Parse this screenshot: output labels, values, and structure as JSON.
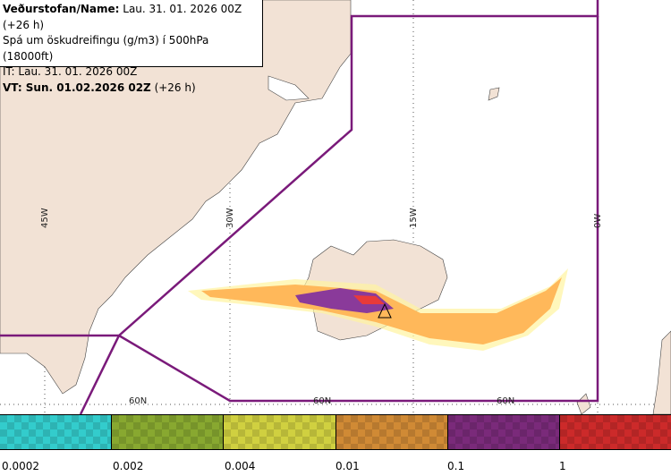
{
  "header": {
    "line1_bold": "Veðurstofan/Name:",
    "line1_rest": " Lau. 31. 01. 2026 00Z (+26 h)",
    "line2": "Spá um öskudreifingu (g/m3) í 500hPa (18000ft)",
    "line3": "IT: Lau. 31. 01. 2026 00Z",
    "line4_bold": "VT: Sun. 01.02.2026 02Z",
    "line4_rest": " (+26 h)"
  },
  "map": {
    "longitude_labels": [
      "45W",
      "30W",
      "15W",
      "0W"
    ],
    "latitude_labels": [
      "60N",
      "60N",
      "60N"
    ],
    "colors": {
      "land": "#f2e2d5",
      "boundary": "#7a1a7a",
      "ash_low": "#ffb85a",
      "ash_mid": "#8a3a9a",
      "ash_high": "#e83a3a"
    }
  },
  "legend": {
    "swatches": [
      {
        "color": "#33cccc"
      },
      {
        "color": "#88a830"
      },
      {
        "color": "#d0d040"
      },
      {
        "color": "#d08a35"
      },
      {
        "color": "#7a2a7a"
      },
      {
        "color": "#cc2a2a"
      }
    ],
    "ticks": [
      "0.0002",
      "0.002",
      "0.004",
      "0.01",
      "0.1",
      "1"
    ]
  }
}
